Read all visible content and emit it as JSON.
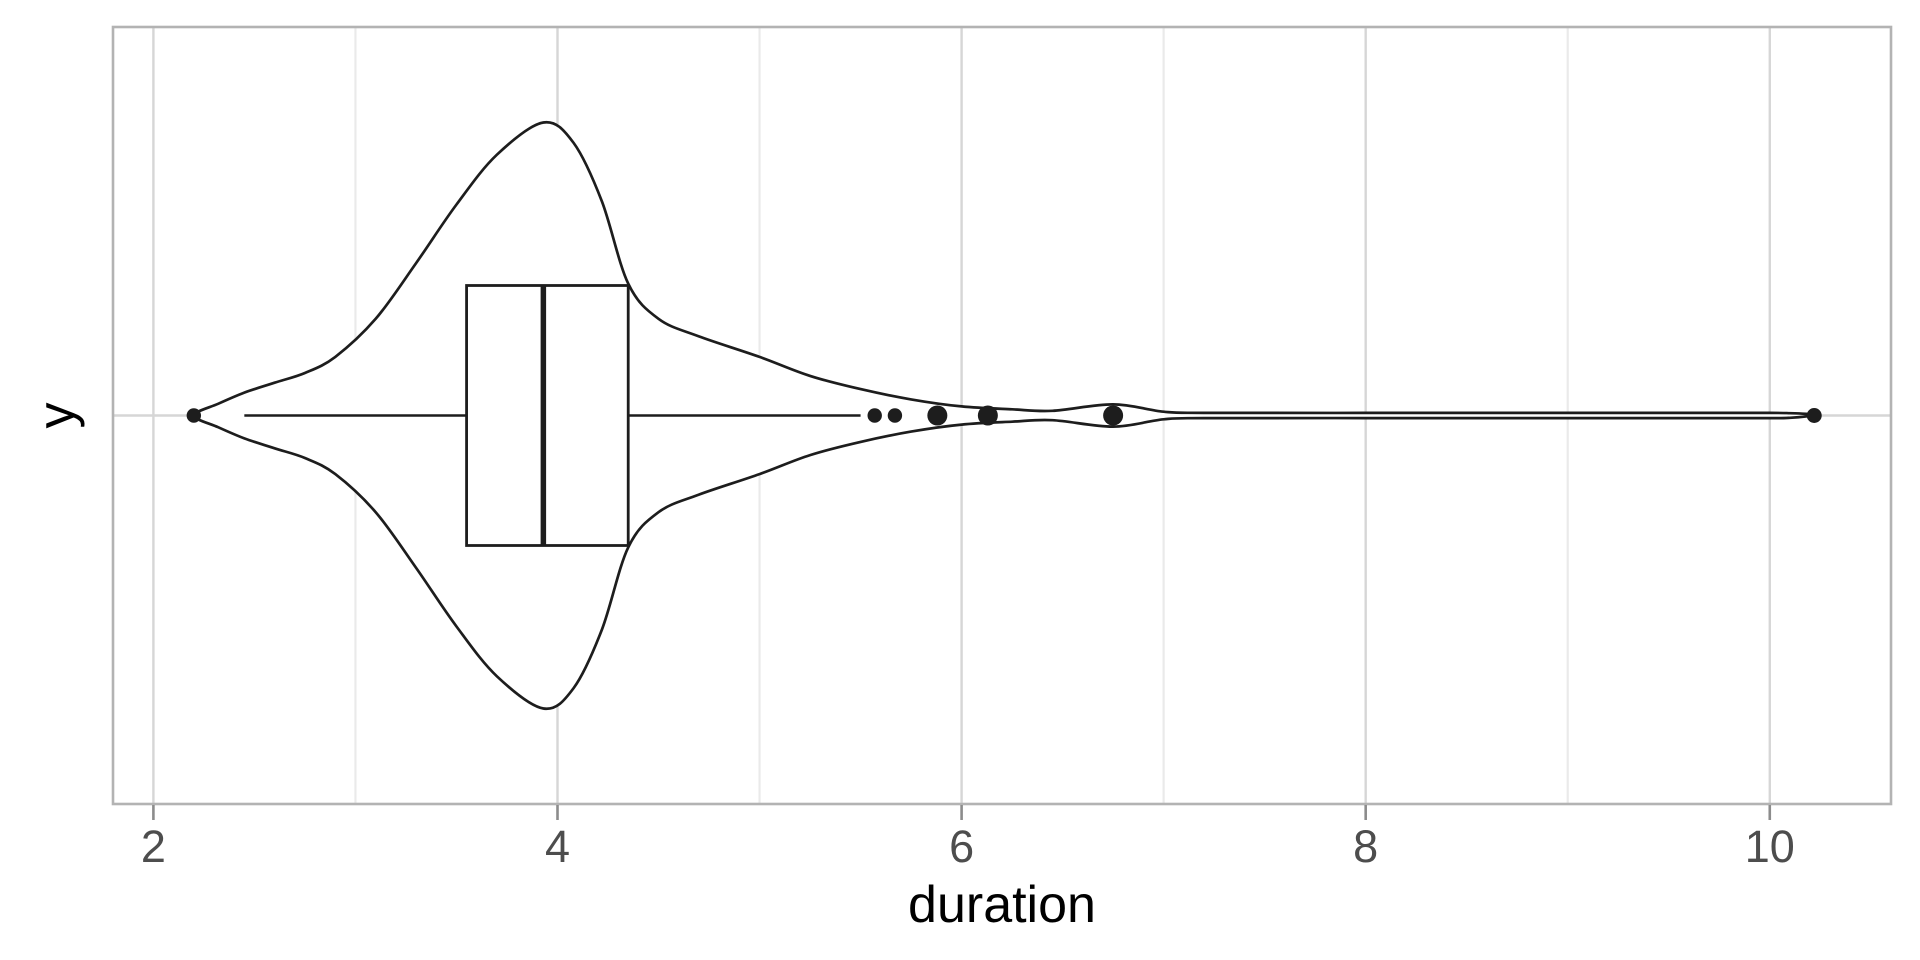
{
  "chart_data": {
    "type": "violin",
    "subtype": "violin-with-boxplot",
    "orientation": "horizontal",
    "title": "",
    "xlabel": "duration",
    "ylabel": "y",
    "x_axis": {
      "range": [
        1.8,
        10.6
      ],
      "major_ticks": [
        2,
        4,
        6,
        8,
        10
      ],
      "tick_labels": [
        "2",
        "4",
        "6",
        "8",
        "10"
      ],
      "minor_ticks": [
        3,
        5,
        7,
        9
      ],
      "grid": "on"
    },
    "y_axis": {
      "categories": [
        "y"
      ],
      "tick_labels": [
        ""
      ],
      "grid": "on"
    },
    "box": {
      "q1": 3.55,
      "median": 3.93,
      "q3": 4.35,
      "whisker_low": 2.45,
      "whisker_high": 5.5
    },
    "outliers": [
      {
        "x": 2.2,
        "r": 7.2
      },
      {
        "x": 5.57,
        "r": 7.2
      },
      {
        "x": 5.67,
        "r": 7.2
      },
      {
        "x": 5.88,
        "r": 10
      },
      {
        "x": 6.13,
        "r": 10
      },
      {
        "x": 6.75,
        "r": 10
      },
      {
        "x": 10.22,
        "r": 7.5
      }
    ],
    "density_profile": [
      [
        2.2,
        0.0
      ],
      [
        2.32,
        0.04
      ],
      [
        2.45,
        0.078
      ],
      [
        2.6,
        0.112
      ],
      [
        2.75,
        0.145
      ],
      [
        2.9,
        0.2
      ],
      [
        3.1,
        0.33
      ],
      [
        3.3,
        0.52
      ],
      [
        3.5,
        0.72
      ],
      [
        3.7,
        0.89
      ],
      [
        3.93,
        1.0
      ],
      [
        4.08,
        0.93
      ],
      [
        4.22,
        0.73
      ],
      [
        4.35,
        0.45
      ],
      [
        4.5,
        0.33
      ],
      [
        4.7,
        0.27
      ],
      [
        5.0,
        0.2
      ],
      [
        5.25,
        0.135
      ],
      [
        5.5,
        0.09
      ],
      [
        5.75,
        0.055
      ],
      [
        6.0,
        0.031
      ],
      [
        6.25,
        0.021
      ],
      [
        6.45,
        0.016
      ],
      [
        6.75,
        0.038
      ],
      [
        7.0,
        0.013
      ],
      [
        7.2,
        0.009
      ],
      [
        8.0,
        0.009
      ],
      [
        9.0,
        0.009
      ],
      [
        9.9,
        0.009
      ],
      [
        10.1,
        0.008
      ],
      [
        10.22,
        0.002
      ]
    ],
    "colors": {
      "stroke": "#1d1d1d",
      "fill": "#ffffff",
      "panel_border": "#b3b3b3",
      "grid_major": "#d6d6d6",
      "grid_minor": "#eaeaea",
      "tick_mark": "#8c8c8c",
      "tick_label": "#4d4d4d",
      "axis_title": "#000000"
    }
  }
}
